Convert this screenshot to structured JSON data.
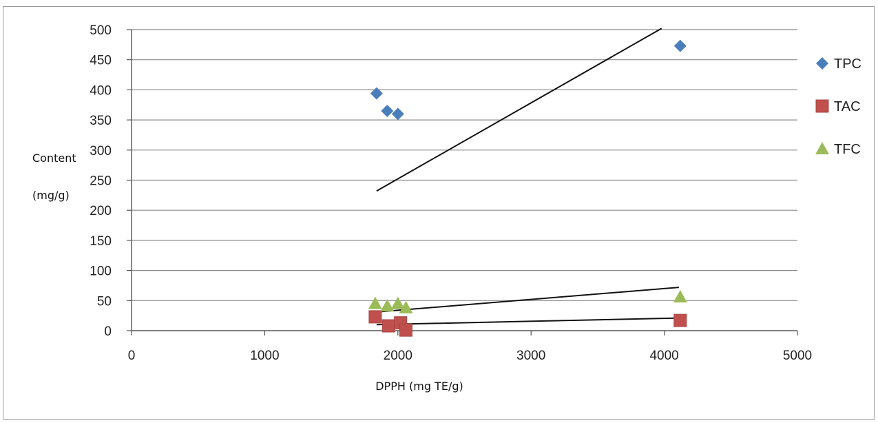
{
  "chart_data": {
    "type": "scatter",
    "title": "",
    "xlabel": "DPPH (mg TE/g)",
    "ylabel_lines": [
      "Content",
      "(mg/g)"
    ],
    "xlim": [
      0,
      5000
    ],
    "ylim": [
      0,
      500
    ],
    "x_ticks": [
      0,
      1000,
      2000,
      3000,
      4000,
      5000
    ],
    "y_ticks": [
      0,
      50,
      100,
      150,
      200,
      250,
      300,
      350,
      400,
      450,
      500
    ],
    "grid": "horizontal",
    "legend_position": "right",
    "series": [
      {
        "name": "TPC",
        "marker": "diamond",
        "color": "#4a7ebb",
        "points": [
          [
            1840,
            394
          ],
          [
            1920,
            365
          ],
          [
            2000,
            360
          ],
          [
            4120,
            473
          ]
        ],
        "trendline": [
          [
            1840,
            232
          ],
          [
            3980,
            502
          ]
        ]
      },
      {
        "name": "TAC",
        "marker": "square",
        "color": "#c0504d",
        "points": [
          [
            1830,
            23
          ],
          [
            1930,
            8
          ],
          [
            2020,
            13
          ],
          [
            2060,
            1
          ],
          [
            4120,
            17
          ]
        ],
        "trendline": [
          [
            1840,
            10
          ],
          [
            4110,
            21
          ]
        ]
      },
      {
        "name": "TFC",
        "marker": "triangle",
        "color": "#9bbb59",
        "points": [
          [
            1830,
            45
          ],
          [
            1920,
            41
          ],
          [
            2000,
            45
          ],
          [
            2060,
            38
          ],
          [
            4120,
            56
          ]
        ],
        "trendline": [
          [
            1840,
            31
          ],
          [
            4110,
            72
          ]
        ]
      }
    ],
    "trendline_color": "#111111"
  }
}
